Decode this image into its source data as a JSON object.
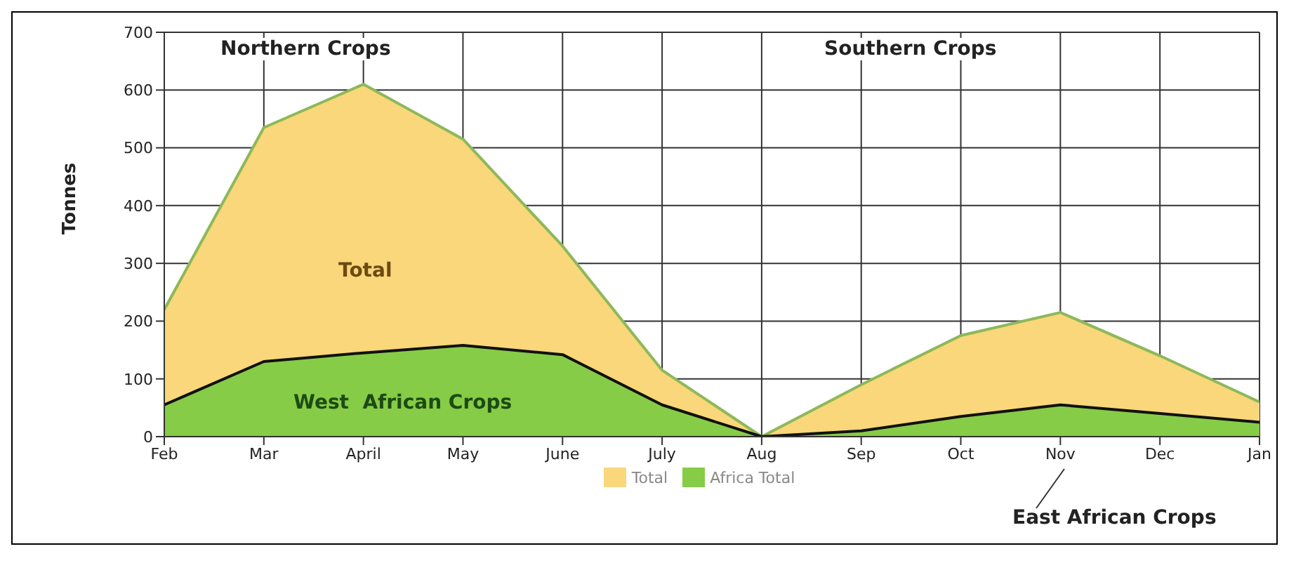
{
  "chart_data": {
    "type": "area",
    "ylabel": "Tonnes",
    "categories": [
      "Feb",
      "Mar",
      "April",
      "May",
      "June",
      "July",
      "Aug",
      "Sep",
      "Oct",
      "Nov",
      "Dec",
      "Jan"
    ],
    "series": [
      {
        "name": "Total",
        "color": "#f9d77a",
        "values": [
          220,
          535,
          610,
          515,
          330,
          115,
          0,
          90,
          175,
          215,
          140,
          60
        ]
      },
      {
        "name": "Africa Total",
        "color": "#86cc46",
        "values": [
          55,
          130,
          145,
          158,
          142,
          55,
          0,
          10,
          35,
          55,
          40,
          25
        ]
      }
    ],
    "ylim": [
      0,
      700
    ],
    "yticks": [
      0,
      100,
      200,
      300,
      400,
      500,
      600,
      700
    ],
    "grid": true,
    "legend": "bottom",
    "annotations": [
      "Northern Crops",
      "Southern Crops",
      "Total",
      "West  African Crops",
      "East African Crops"
    ]
  }
}
